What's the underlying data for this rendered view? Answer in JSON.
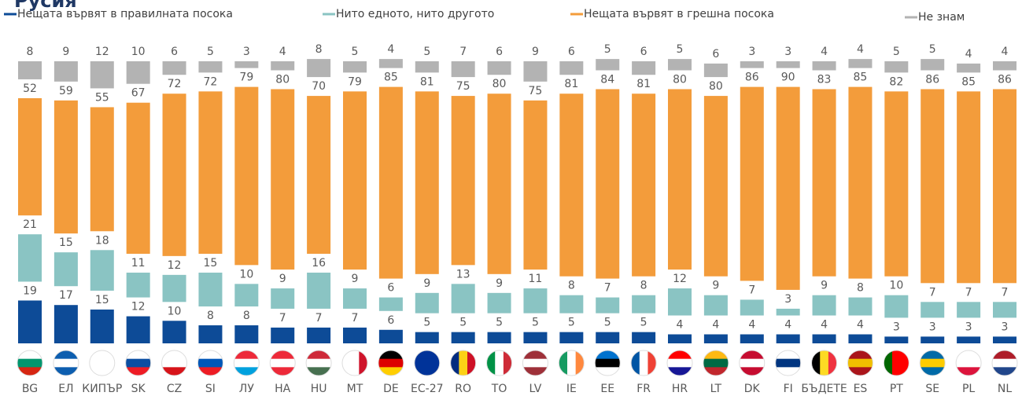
{
  "chart_data": {
    "type": "bar",
    "stacked": true,
    "title": "Русия",
    "categories": [
      "BG",
      "ЕЛ",
      "КИПЪР",
      "SK",
      "CZ",
      "SI",
      "ЛУ",
      "НА",
      "HU",
      "MT",
      "DE",
      "ЕС-27",
      "RO",
      "ТО",
      "LV",
      "IE",
      "EE",
      "FR",
      "HR",
      "LT",
      "DK",
      "FI",
      "БЪДЕТЕ",
      "ES",
      "PT",
      "SE",
      "PL",
      "NL"
    ],
    "series": [
      {
        "name": "Нещата вървят в правилната посока",
        "color": "#0d4b97",
        "values": [
          19,
          17,
          15,
          12,
          10,
          8,
          8,
          7,
          7,
          7,
          6,
          5,
          5,
          5,
          5,
          5,
          5,
          5,
          4,
          4,
          4,
          4,
          4,
          4,
          3,
          3,
          3,
          3
        ]
      },
      {
        "name": "Нито едното, нито другото",
        "color": "#8ac4c3",
        "values": [
          21,
          15,
          18,
          11,
          12,
          15,
          10,
          9,
          16,
          9,
          6,
          9,
          13,
          9,
          11,
          8,
          7,
          8,
          12,
          9,
          7,
          3,
          9,
          8,
          10,
          7,
          7,
          7
        ]
      },
      {
        "name": "Нещата вървят в грешна посока",
        "color": "#f39c3b",
        "values": [
          52,
          59,
          55,
          67,
          72,
          72,
          79,
          80,
          70,
          79,
          85,
          81,
          75,
          80,
          75,
          81,
          84,
          81,
          80,
          80,
          86,
          90,
          83,
          85,
          82,
          86,
          85,
          86
        ]
      },
      {
        "name": "Не знам",
        "color": "#b3b3b3",
        "values": [
          8,
          9,
          12,
          10,
          6,
          5,
          3,
          4,
          8,
          5,
          4,
          5,
          7,
          6,
          9,
          6,
          5,
          6,
          5,
          6,
          3,
          3,
          4,
          4,
          5,
          5,
          4,
          4
        ]
      }
    ]
  }
}
